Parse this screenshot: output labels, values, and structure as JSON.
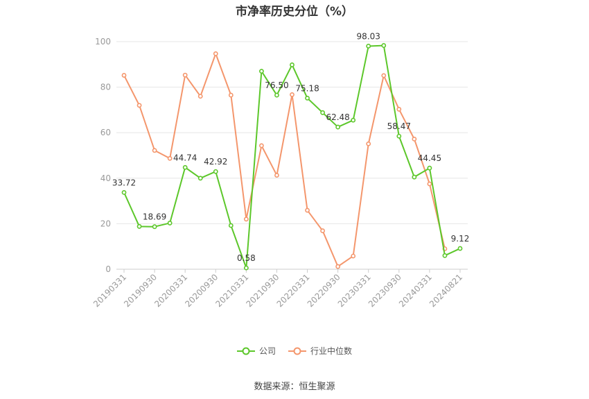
{
  "chart_data": {
    "type": "line",
    "title": "市净率历史分位（%）",
    "xlabel": "",
    "ylabel": "",
    "ylim": [
      0,
      100
    ],
    "yticks": [
      0,
      20,
      40,
      60,
      80,
      100
    ],
    "x": [
      "20190331",
      "20190630",
      "20190930",
      "20191231",
      "20200331",
      "20200630",
      "20200930",
      "20201231",
      "20210331",
      "20210630",
      "20210930",
      "20211231",
      "20220331",
      "20220630",
      "20220930",
      "20221231",
      "20230331",
      "20230630",
      "20230930",
      "20231231",
      "20240331",
      "20240630",
      "20240821"
    ],
    "x_tick_labels": [
      "20190331",
      "20190930",
      "20200331",
      "20200930",
      "20210331",
      "20210930",
      "20220331",
      "20220930",
      "20230331",
      "20230930",
      "20240331",
      "20240821"
    ],
    "series": [
      {
        "name": "公司",
        "color": "#5cc72a",
        "values": [
          33.72,
          18.8,
          18.69,
          20.3,
          44.74,
          40.0,
          42.92,
          19.2,
          0.58,
          87.0,
          76.5,
          89.8,
          75.18,
          68.8,
          62.48,
          65.5,
          98.03,
          98.3,
          58.47,
          40.5,
          44.45,
          6.0,
          9.12
        ],
        "labels": {
          "0": "33.72",
          "2": "18.69",
          "4": "44.74",
          "6": "42.92",
          "8": "0.58",
          "10": "76.50",
          "12": "75.18",
          "14": "62.48",
          "16": "98.03",
          "18": "58.47",
          "20": "44.45",
          "22": "9.12"
        }
      },
      {
        "name": "行业中位数",
        "color": "#f4966c",
        "values": [
          85.2,
          72.0,
          52.2,
          48.7,
          85.3,
          76.0,
          94.7,
          76.5,
          22.0,
          54.3,
          41.3,
          76.7,
          25.9,
          16.9,
          1.2,
          5.8,
          55.1,
          85.1,
          70.3,
          57.2,
          37.5,
          9.0,
          null
        ]
      }
    ],
    "grid": true,
    "legend_position": "bottom"
  },
  "source_text": "数据来源：恒生聚源"
}
